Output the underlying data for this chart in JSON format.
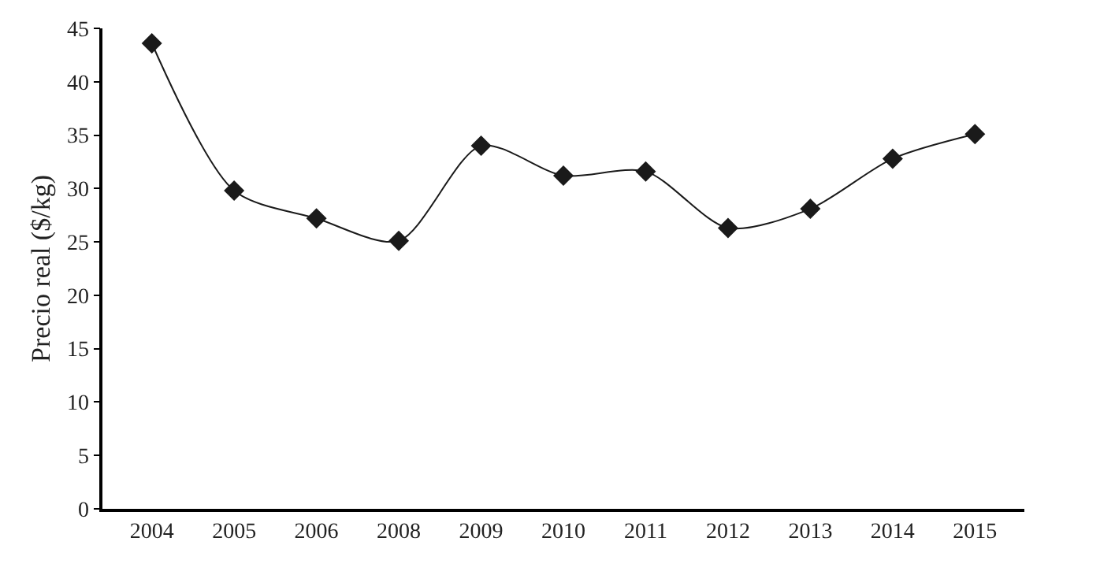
{
  "chart_data": {
    "type": "line",
    "ylabel": "Precio real ($/kg)",
    "categories": [
      "2004",
      "2005",
      "2006",
      "2008",
      "2009",
      "2010",
      "2011",
      "2012",
      "2013",
      "2014",
      "2015"
    ],
    "series": [
      {
        "color": "#1a1a1a",
        "values": [
          43.6,
          29.8,
          27.2,
          25.1,
          34.0,
          31.2,
          31.6,
          26.3,
          28.1,
          32.8,
          35.1
        ]
      }
    ],
    "ylim": [
      0,
      45
    ],
    "yticks": [
      0,
      5,
      10,
      15,
      20,
      25,
      30,
      35,
      40,
      45
    ],
    "grid": false,
    "marker": "diamond",
    "line_style": "solid"
  }
}
